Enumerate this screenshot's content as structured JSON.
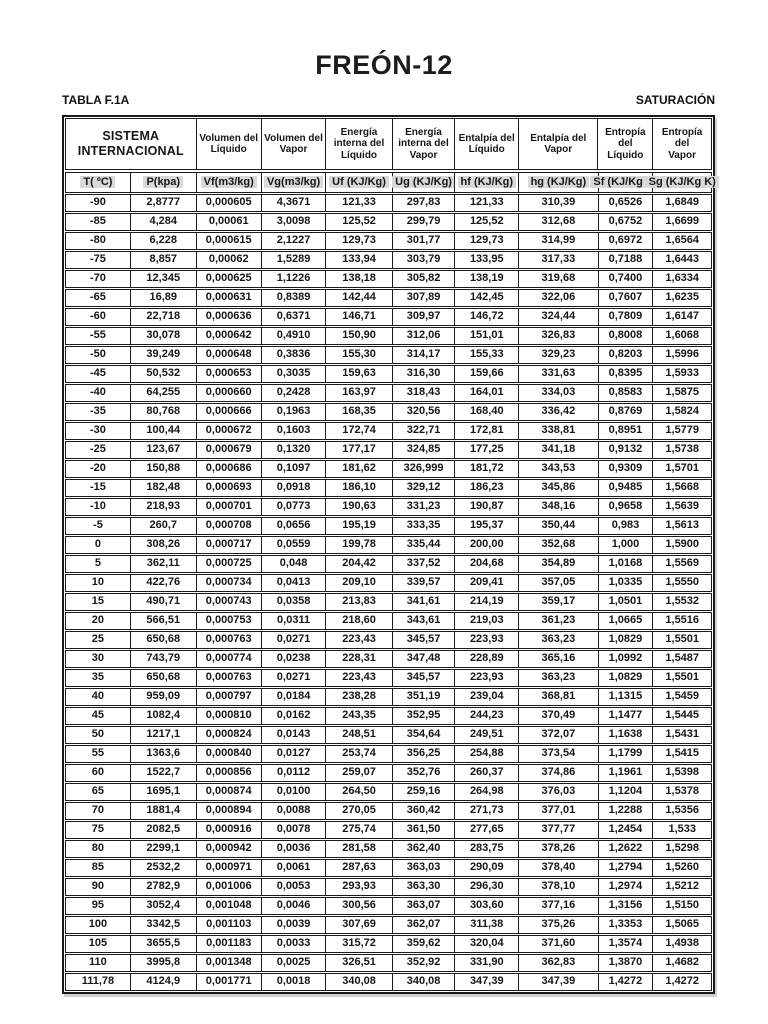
{
  "page": {
    "title": "FREÓN-12",
    "table_label": "TABLA F.1A",
    "right_label": "SATURACIÓN"
  },
  "table": {
    "group_headers": [
      {
        "label": "SISTEMA\nINTERNACIONAL",
        "span": 2
      },
      {
        "label": "Volumen del\nLíquido",
        "span": 1
      },
      {
        "label": "Volumen del\nVapor",
        "span": 1
      },
      {
        "label": "Energía\ninterna del\nLíquido",
        "span": 1
      },
      {
        "label": "Energía\ninterna del\nVapor",
        "span": 1
      },
      {
        "label": "Entalpía del\nLíquido",
        "span": 1
      },
      {
        "label": "Entalpía del\nVapor",
        "span": 1
      },
      {
        "label": "Entropía del\nLíquido",
        "span": 1
      },
      {
        "label": "Entropía del\nVapor",
        "span": 1
      }
    ],
    "col_headers": [
      "T( ºC)",
      "P(kpa)",
      "Vf(m3/kg)",
      "Vg(m3/kg)",
      "Uf (KJ/Kg)",
      "Ug (KJ/Kg)",
      "hf (KJ/Kg)",
      "hg (KJ/Kg)",
      "Sf (KJ/Kg K)",
      "Sg (KJ/Kg K)"
    ],
    "rows": [
      [
        "-90",
        "2,8777",
        "0,000605",
        "4,3671",
        "121,33",
        "297,83",
        "121,33",
        "310,39",
        "0,6526",
        "1,6849"
      ],
      [
        "-85",
        "4,284",
        "0,00061",
        "3,0098",
        "125,52",
        "299,79",
        "125,52",
        "312,68",
        "0,6752",
        "1,6699"
      ],
      [
        "-80",
        "6,228",
        "0,000615",
        "2,1227",
        "129,73",
        "301,77",
        "129,73",
        "314,99",
        "0,6972",
        "1,6564"
      ],
      [
        "-75",
        "8,857",
        "0,00062",
        "1,5289",
        "133,94",
        "303,79",
        "133,95",
        "317,33",
        "0,7188",
        "1,6443"
      ],
      [
        "-70",
        "12,345",
        "0,000625",
        "1,1226",
        "138,18",
        "305,82",
        "138,19",
        "319,68",
        "0,7400",
        "1,6334"
      ],
      [
        "-65",
        "16,89",
        "0,000631",
        "0,8389",
        "142,44",
        "307,89",
        "142,45",
        "322,06",
        "0,7607",
        "1,6235"
      ],
      [
        "-60",
        "22,718",
        "0,000636",
        "0,6371",
        "146,71",
        "309,97",
        "146,72",
        "324,44",
        "0,7809",
        "1,6147"
      ],
      [
        "-55",
        "30,078",
        "0,000642",
        "0,4910",
        "150,90",
        "312,06",
        "151,01",
        "326,83",
        "0,8008",
        "1,6068"
      ],
      [
        "-50",
        "39,249",
        "0,000648",
        "0,3836",
        "155,30",
        "314,17",
        "155,33",
        "329,23",
        "0,8203",
        "1,5996"
      ],
      [
        "-45",
        "50,532",
        "0,000653",
        "0,3035",
        "159,63",
        "316,30",
        "159,66",
        "331,63",
        "0,8395",
        "1,5933"
      ],
      [
        "-40",
        "64,255",
        "0,000660",
        "0,2428",
        "163,97",
        "318,43",
        "164,01",
        "334,03",
        "0,8583",
        "1,5875"
      ],
      [
        "-35",
        "80,768",
        "0,000666",
        "0,1963",
        "168,35",
        "320,56",
        "168,40",
        "336,42",
        "0,8769",
        "1,5824"
      ],
      [
        "-30",
        "100,44",
        "0,000672",
        "0,1603",
        "172,74",
        "322,71",
        "172,81",
        "338,81",
        "0,8951",
        "1,5779"
      ],
      [
        "-25",
        "123,67",
        "0,000679",
        "0,1320",
        "177,17",
        "324,85",
        "177,25",
        "341,18",
        "0,9132",
        "1,5738"
      ],
      [
        "-20",
        "150,88",
        "0,000686",
        "0,1097",
        "181,62",
        "326,999",
        "181,72",
        "343,53",
        "0,9309",
        "1,5701"
      ],
      [
        "-15",
        "182,48",
        "0,000693",
        "0,0918",
        "186,10",
        "329,12",
        "186,23",
        "345,86",
        "0,9485",
        "1,5668"
      ],
      [
        "-10",
        "218,93",
        "0,000701",
        "0,0773",
        "190,63",
        "331,23",
        "190,87",
        "348,16",
        "0,9658",
        "1,5639"
      ],
      [
        "-5",
        "260,7",
        "0,000708",
        "0,0656",
        "195,19",
        "333,35",
        "195,37",
        "350,44",
        "0,983",
        "1,5613"
      ],
      [
        "0",
        "308,26",
        "0,000717",
        "0,0559",
        "199,78",
        "335,44",
        "200,00",
        "352,68",
        "1,000",
        "1,5900"
      ],
      [
        "5",
        "362,11",
        "0,000725",
        "0,048",
        "204,42",
        "337,52",
        "204,68",
        "354,89",
        "1,0168",
        "1,5569"
      ],
      [
        "10",
        "422,76",
        "0,000734",
        "0,0413",
        "209,10",
        "339,57",
        "209,41",
        "357,05",
        "1,0335",
        "1,5550"
      ],
      [
        "15",
        "490,71",
        "0,000743",
        "0,0358",
        "213,83",
        "341,61",
        "214,19",
        "359,17",
        "1,0501",
        "1,5532"
      ],
      [
        "20",
        "566,51",
        "0,000753",
        "0,0311",
        "218,60",
        "343,61",
        "219,03",
        "361,23",
        "1,0665",
        "1,5516"
      ],
      [
        "25",
        "650,68",
        "0,000763",
        "0,0271",
        "223,43",
        "345,57",
        "223,93",
        "363,23",
        "1,0829",
        "1,5501"
      ],
      [
        "30",
        "743,79",
        "0,000774",
        "0,0238",
        "228,31",
        "347,48",
        "228,89",
        "365,16",
        "1,0992",
        "1,5487"
      ],
      [
        "35",
        "650,68",
        "0,000763",
        "0,0271",
        "223,43",
        "345,57",
        "223,93",
        "363,23",
        "1,0829",
        "1,5501"
      ],
      [
        "40",
        "959,09",
        "0,000797",
        "0,0184",
        "238,28",
        "351,19",
        "239,04",
        "368,81",
        "1,1315",
        "1,5459"
      ],
      [
        "45",
        "1082,4",
        "0,000810",
        "0,0162",
        "243,35",
        "352,95",
        "244,23",
        "370,49",
        "1,1477",
        "1,5445"
      ],
      [
        "50",
        "1217,1",
        "0,000824",
        "0,0143",
        "248,51",
        "354,64",
        "249,51",
        "372,07",
        "1,1638",
        "1,5431"
      ],
      [
        "55",
        "1363,6",
        "0,000840",
        "0,0127",
        "253,74",
        "356,25",
        "254,88",
        "373,54",
        "1,1799",
        "1,5415"
      ],
      [
        "60",
        "1522,7",
        "0,000856",
        "0,0112",
        "259,07",
        "352,76",
        "260,37",
        "374,86",
        "1,1961",
        "1,5398"
      ],
      [
        "65",
        "1695,1",
        "0,000874",
        "0,0100",
        "264,50",
        "259,16",
        "264,98",
        "376,03",
        "1,1204",
        "1,5378"
      ],
      [
        "70",
        "1881,4",
        "0,000894",
        "0,0088",
        "270,05",
        "360,42",
        "271,73",
        "377,01",
        "1,2288",
        "1,5356"
      ],
      [
        "75",
        "2082,5",
        "0,000916",
        "0,0078",
        "275,74",
        "361,50",
        "277,65",
        "377,77",
        "1,2454",
        "1,533"
      ],
      [
        "80",
        "2299,1",
        "0,000942",
        "0,0036",
        "281,58",
        "362,40",
        "283,75",
        "378,26",
        "1,2622",
        "1,5298"
      ],
      [
        "85",
        "2532,2",
        "0,000971",
        "0,0061",
        "287,63",
        "363,03",
        "290,09",
        "378,40",
        "1,2794",
        "1,5260"
      ],
      [
        "90",
        "2782,9",
        "0,001006",
        "0,0053",
        "293,93",
        "363,30",
        "296,30",
        "378,10",
        "1,2974",
        "1,5212"
      ],
      [
        "95",
        "3052,4",
        "0,001048",
        "0,0046",
        "300,56",
        "363,07",
        "303,60",
        "377,16",
        "1,3156",
        "1,5150"
      ],
      [
        "100",
        "3342,5",
        "0,001103",
        "0,0039",
        "307,69",
        "362,07",
        "311,38",
        "375,26",
        "1,3353",
        "1,5065"
      ],
      [
        "105",
        "3655,5",
        "0,001183",
        "0,0033",
        "315,72",
        "359,62",
        "320,04",
        "371,60",
        "1,3574",
        "1,4938"
      ],
      [
        "110",
        "3995,8",
        "0,001348",
        "0,0025",
        "326,51",
        "352,92",
        "331,90",
        "362,83",
        "1,3870",
        "1,4682"
      ],
      [
        "111,78",
        "4124,9",
        "0,001771",
        "0,0018",
        "340,08",
        "340,08",
        "347,39",
        "347,39",
        "1,4272",
        "1,4272"
      ]
    ]
  }
}
